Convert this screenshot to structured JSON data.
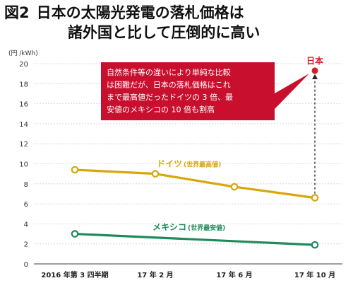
{
  "title": {
    "figure_label": "図2",
    "line1": "日本の太陽光発電の落札価格は",
    "line2": "諸外国と比して圧倒的に高い"
  },
  "colors": {
    "germany": "#d8a60b",
    "mexico": "#1f8a5b",
    "japan": "#d0202b",
    "callout_bg": "#c8102e",
    "axis": "#666666"
  },
  "chart_data": {
    "type": "line",
    "unit_label": "(円 /kWh)",
    "ylim": [
      0,
      20
    ],
    "yticks": [
      0,
      2,
      4,
      6,
      8,
      10,
      12,
      14,
      16,
      18,
      20
    ],
    "categories": [
      "2016 年第 3 四半期",
      "17 年 2 月",
      "17 年 6 月",
      "17 年 10 月"
    ],
    "series": [
      {
        "name": "ドイツ",
        "sub": "(世界最高値)",
        "values": [
          9.4,
          9.0,
          7.7,
          6.6
        ]
      },
      {
        "name": "メキシコ",
        "sub": "(世界最安値)",
        "values": [
          3.0,
          null,
          null,
          1.9
        ]
      }
    ],
    "japan_point": {
      "name": "日本",
      "category_index": 3,
      "value": 19.3
    },
    "callout_lines": [
      "自然条件等の違いにより単純な比較",
      "は困難だが、日本の落札価格はこれ",
      "まで最高値だったドイツの 3 倍、最",
      "安値のメキシコの 10 倍も割高"
    ]
  }
}
